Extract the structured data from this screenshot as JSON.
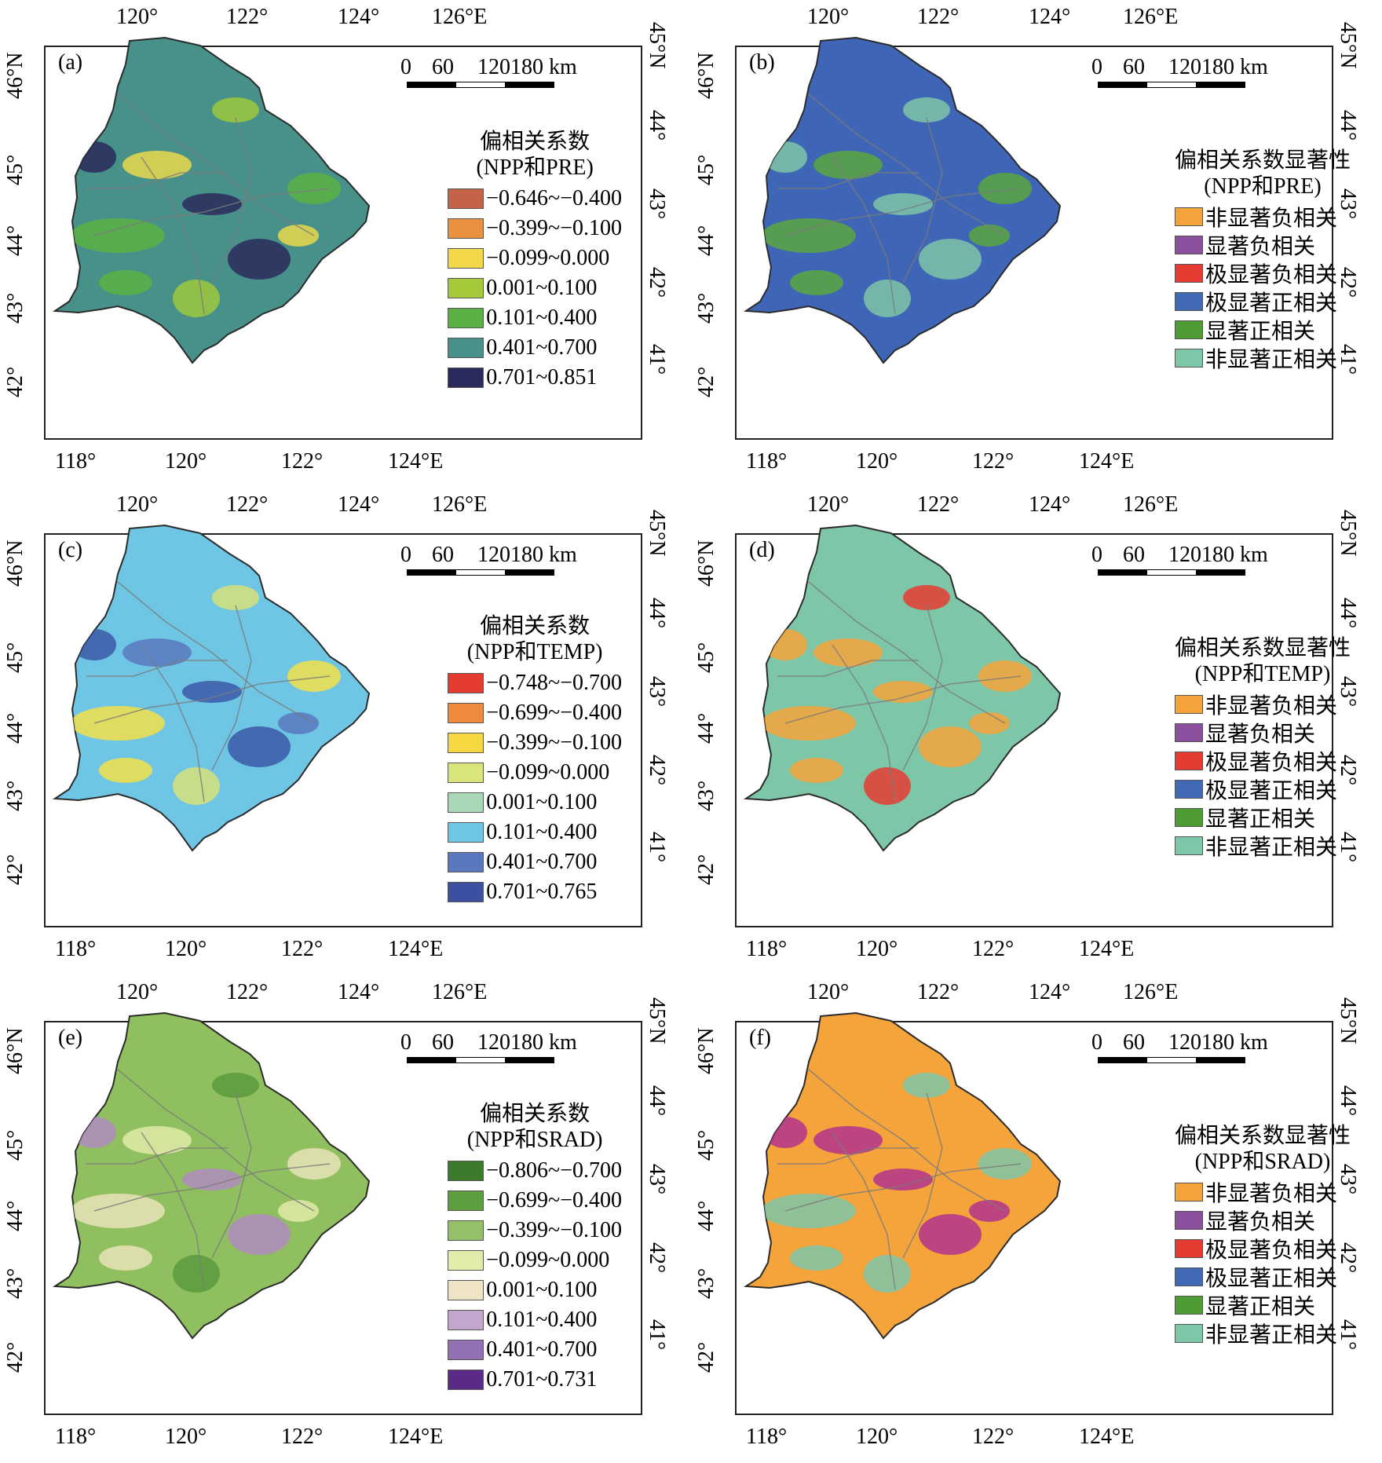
{
  "ticks": {
    "top": [
      "120°",
      "122°",
      "124°",
      "126°E"
    ],
    "bottom": [
      "118°",
      "120°",
      "122°",
      "124°E"
    ],
    "left": [
      "42°",
      "43°",
      "44°",
      "45°",
      "46°N"
    ],
    "right": [
      "41°",
      "42°",
      "43°",
      "44°",
      "45°N"
    ]
  },
  "scale": {
    "labels": [
      "0",
      "60",
      "120",
      "180 km"
    ]
  },
  "colors": {
    "boundary": "#2b2b2b",
    "rivers": "#7a7a7a"
  },
  "panels": [
    {
      "letter": "(a)",
      "base_color": "#47918a",
      "patch_colors": [
        "#5ab043",
        "#2b2a5c",
        "#9dc83b",
        "#e9d84a"
      ],
      "legend": {
        "title1": "偏相关系数",
        "title2": "(NPP和PRE)",
        "items": [
          {
            "label": "−0.646~−0.400",
            "color": "#c5634a"
          },
          {
            "label": "−0.399~−0.100",
            "color": "#e8913e"
          },
          {
            "label": "−0.099~0.000",
            "color": "#f3d84a"
          },
          {
            "label": "0.001~0.100",
            "color": "#a4c93b"
          },
          {
            "label": "0.101~0.400",
            "color": "#5ab043"
          },
          {
            "label": "0.401~0.700",
            "color": "#47918a"
          },
          {
            "label": "0.701~0.851",
            "color": "#2b2a5c"
          }
        ]
      }
    },
    {
      "letter": "(b)",
      "base_color": "#3f66b6",
      "patch_colors": [
        "#5aa73f",
        "#7ec6a8",
        "#7ec6a8",
        "#5aa73f"
      ],
      "legend": {
        "title1": "偏相关系数显著性",
        "title2": "(NPP和PRE)",
        "items": [
          {
            "label": "非显著负相关",
            "color": "#f5a33b"
          },
          {
            "label": "显著负相关",
            "color": "#8b4f9e"
          },
          {
            "label": "极显著负相关",
            "color": "#e63b33"
          },
          {
            "label": "极显著正相关",
            "color": "#4169b6"
          },
          {
            "label": "显著正相关",
            "color": "#4e9c33"
          },
          {
            "label": "非显著正相关",
            "color": "#7ec6a8"
          }
        ]
      }
    },
    {
      "letter": "(c)",
      "base_color": "#6ec6e4",
      "patch_colors": [
        "#f3e04a",
        "#3c58a8",
        "#d6e27a",
        "#5a78c0"
      ],
      "legend": {
        "title1": "偏相关系数",
        "title2": "(NPP和TEMP)",
        "items": [
          {
            "label": "−0.748~−0.700",
            "color": "#e63b33"
          },
          {
            "label": "−0.699~−0.400",
            "color": "#f08a3c"
          },
          {
            "label": "−0.399~−0.100",
            "color": "#f6d842"
          },
          {
            "label": "−0.099~0.000",
            "color": "#d9e47a"
          },
          {
            "label": "0.001~0.100",
            "color": "#a8d8b8"
          },
          {
            "label": "0.101~0.400",
            "color": "#6ec6e4"
          },
          {
            "label": "0.401~0.700",
            "color": "#5a78c0"
          },
          {
            "label": "0.701~0.765",
            "color": "#3c4fa0"
          }
        ]
      }
    },
    {
      "letter": "(d)",
      "base_color": "#7ec6a8",
      "patch_colors": [
        "#f5a33b",
        "#f5a33b",
        "#e63b33",
        "#f5a33b"
      ],
      "legend": {
        "title1": "偏相关系数显著性",
        "title2": "(NPP和TEMP)",
        "items": [
          {
            "label": "非显著负相关",
            "color": "#f5a33b"
          },
          {
            "label": "显著负相关",
            "color": "#8b4f9e"
          },
          {
            "label": "极显著负相关",
            "color": "#e63b33"
          },
          {
            "label": "极显著正相关",
            "color": "#4169b6"
          },
          {
            "label": "显著正相关",
            "color": "#4e9c33"
          },
          {
            "label": "非显著正相关",
            "color": "#7ec6a8"
          }
        ]
      }
    },
    {
      "letter": "(e)",
      "base_color": "#8fbf5e",
      "patch_colors": [
        "#e9e3b8",
        "#b08cc0",
        "#5a9a3e",
        "#e2eaa8"
      ],
      "legend": {
        "title1": "偏相关系数",
        "title2": "(NPP和SRAD)",
        "items": [
          {
            "label": "−0.806~−0.700",
            "color": "#3c7a2e"
          },
          {
            "label": "−0.699~−0.400",
            "color": "#5d9e3e"
          },
          {
            "label": "−0.399~−0.100",
            "color": "#94c06a"
          },
          {
            "label": "−0.099~0.000",
            "color": "#e2ecaa"
          },
          {
            "label": "0.001~0.100",
            "color": "#efe4c4"
          },
          {
            "label": "0.101~0.400",
            "color": "#c2a6cc"
          },
          {
            "label": "0.401~0.700",
            "color": "#9170b4"
          },
          {
            "label": "0.701~0.731",
            "color": "#5b2a86"
          }
        ]
      }
    },
    {
      "letter": "(f)",
      "base_color": "#f5a33b",
      "patch_colors": [
        "#7ec6a8",
        "#b0348e",
        "#7ec6a8",
        "#b0348e"
      ],
      "legend": {
        "title1": "偏相关系数显著性",
        "title2": "(NPP和SRAD)",
        "items": [
          {
            "label": "非显著负相关",
            "color": "#f5a33b"
          },
          {
            "label": "显著负相关",
            "color": "#8b4f9e"
          },
          {
            "label": "极显著负相关",
            "color": "#e63b33"
          },
          {
            "label": "极显著正相关",
            "color": "#4169b6"
          },
          {
            "label": "显著正相关",
            "color": "#4e9c33"
          },
          {
            "label": "非显著正相关",
            "color": "#7ec6a8"
          }
        ]
      }
    }
  ]
}
